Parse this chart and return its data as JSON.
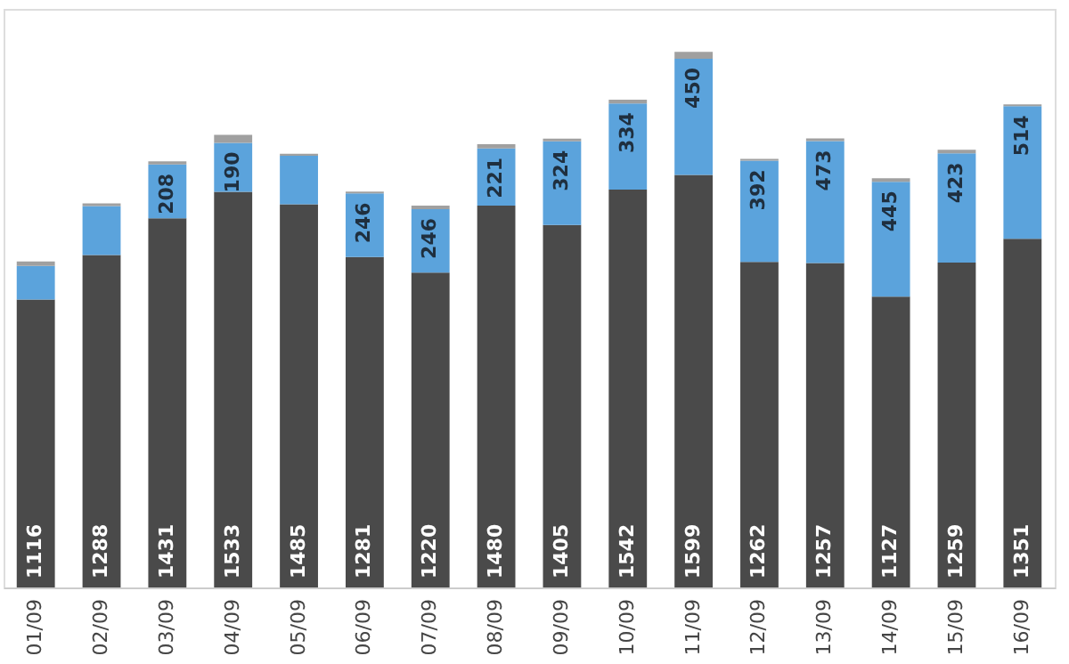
{
  "chart_data": {
    "type": "bar",
    "stacked": true,
    "grid": false,
    "tick_labels": "x",
    "categories": [
      "01/09",
      "02/09",
      "03/09",
      "04/09",
      "05/09",
      "06/09",
      "07/09",
      "08/09",
      "09/09",
      "10/09",
      "11/09",
      "12/09",
      "13/09",
      "14/09",
      "15/09",
      "16/09"
    ],
    "series": [
      {
        "color": "#4a4a4a",
        "values": [
          1116,
          1288,
          1431,
          1533,
          1485,
          1281,
          1220,
          1480,
          1405,
          1542,
          1599,
          1262,
          1257,
          1127,
          1259,
          1351
        ],
        "value_labels": [
          "1116",
          "1288",
          "1431",
          "1533",
          "1485",
          "1281",
          "1220",
          "1480",
          "1405",
          "1542",
          "1599",
          "1262",
          "1257",
          "1127",
          "1259",
          "1351"
        ]
      },
      {
        "color": "#5ba3dc",
        "values": [
          130,
          190,
          208,
          190,
          188,
          246,
          246,
          221,
          324,
          334,
          450,
          392,
          473,
          445,
          423,
          514
        ],
        "value_labels": [
          null,
          null,
          "208",
          "190",
          null,
          "246",
          "246",
          "221",
          "324",
          "334",
          "450",
          "392",
          "473",
          "445",
          "423",
          "514"
        ]
      },
      {
        "color": "#a0a0a0",
        "values": [
          17,
          10,
          12,
          31,
          8,
          7,
          14,
          17,
          10,
          14,
          27,
          7,
          10,
          14,
          14,
          7
        ]
      }
    ]
  }
}
